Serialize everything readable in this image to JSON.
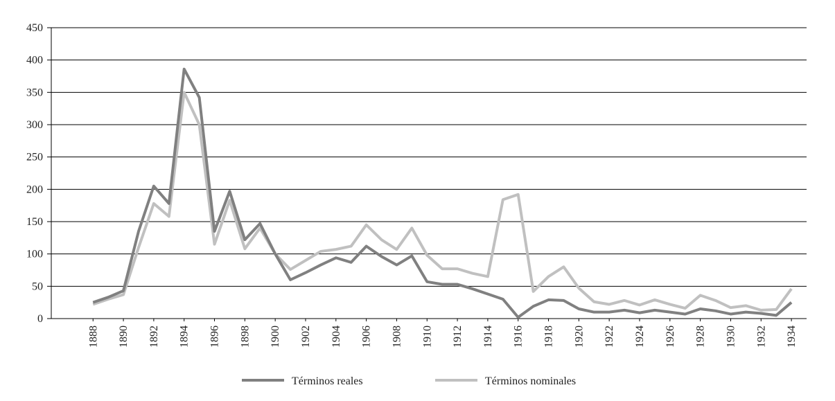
{
  "chart_data": {
    "type": "line",
    "x": [
      1888,
      1889,
      1890,
      1891,
      1892,
      1893,
      1894,
      1895,
      1896,
      1897,
      1898,
      1899,
      1900,
      1901,
      1902,
      1903,
      1904,
      1905,
      1906,
      1907,
      1908,
      1909,
      1910,
      1911,
      1912,
      1913,
      1914,
      1915,
      1916,
      1917,
      1918,
      1919,
      1920,
      1921,
      1922,
      1923,
      1924,
      1925,
      1926,
      1927,
      1928,
      1929,
      1930,
      1931,
      1932,
      1933,
      1934
    ],
    "series": [
      {
        "name": "Términos reales",
        "color": "#808080",
        "values": [
          25,
          33,
          43,
          135,
          205,
          178,
          386,
          342,
          135,
          197,
          122,
          147,
          100,
          60,
          71,
          83,
          94,
          87,
          112,
          96,
          83,
          97,
          57,
          53,
          53,
          46,
          38,
          30,
          2,
          19,
          29,
          28,
          15,
          10,
          10,
          13,
          9,
          13,
          10,
          7,
          15,
          12,
          7,
          10,
          8,
          5,
          25
        ]
      },
      {
        "name": "Términos nominales",
        "color": "#c0c0c0",
        "values": [
          22,
          30,
          37,
          110,
          178,
          158,
          350,
          300,
          115,
          183,
          108,
          140,
          100,
          76,
          90,
          104,
          107,
          112,
          145,
          122,
          107,
          140,
          98,
          77,
          77,
          70,
          65,
          184,
          192,
          42,
          65,
          80,
          47,
          26,
          22,
          28,
          21,
          29,
          22,
          16,
          36,
          28,
          17,
          20,
          13,
          14,
          46
        ]
      }
    ],
    "xlim": [
      1885.25,
      1935
    ],
    "xticks": [
      1888,
      1890,
      1892,
      1894,
      1896,
      1898,
      1900,
      1902,
      1904,
      1906,
      1908,
      1910,
      1912,
      1914,
      1916,
      1918,
      1920,
      1922,
      1924,
      1926,
      1928,
      1930,
      1932,
      1934
    ],
    "ylim": [
      0,
      450
    ],
    "yticks": [
      0,
      50,
      100,
      150,
      200,
      250,
      300,
      350,
      400,
      450
    ],
    "grid": true,
    "legend": "bottom"
  }
}
